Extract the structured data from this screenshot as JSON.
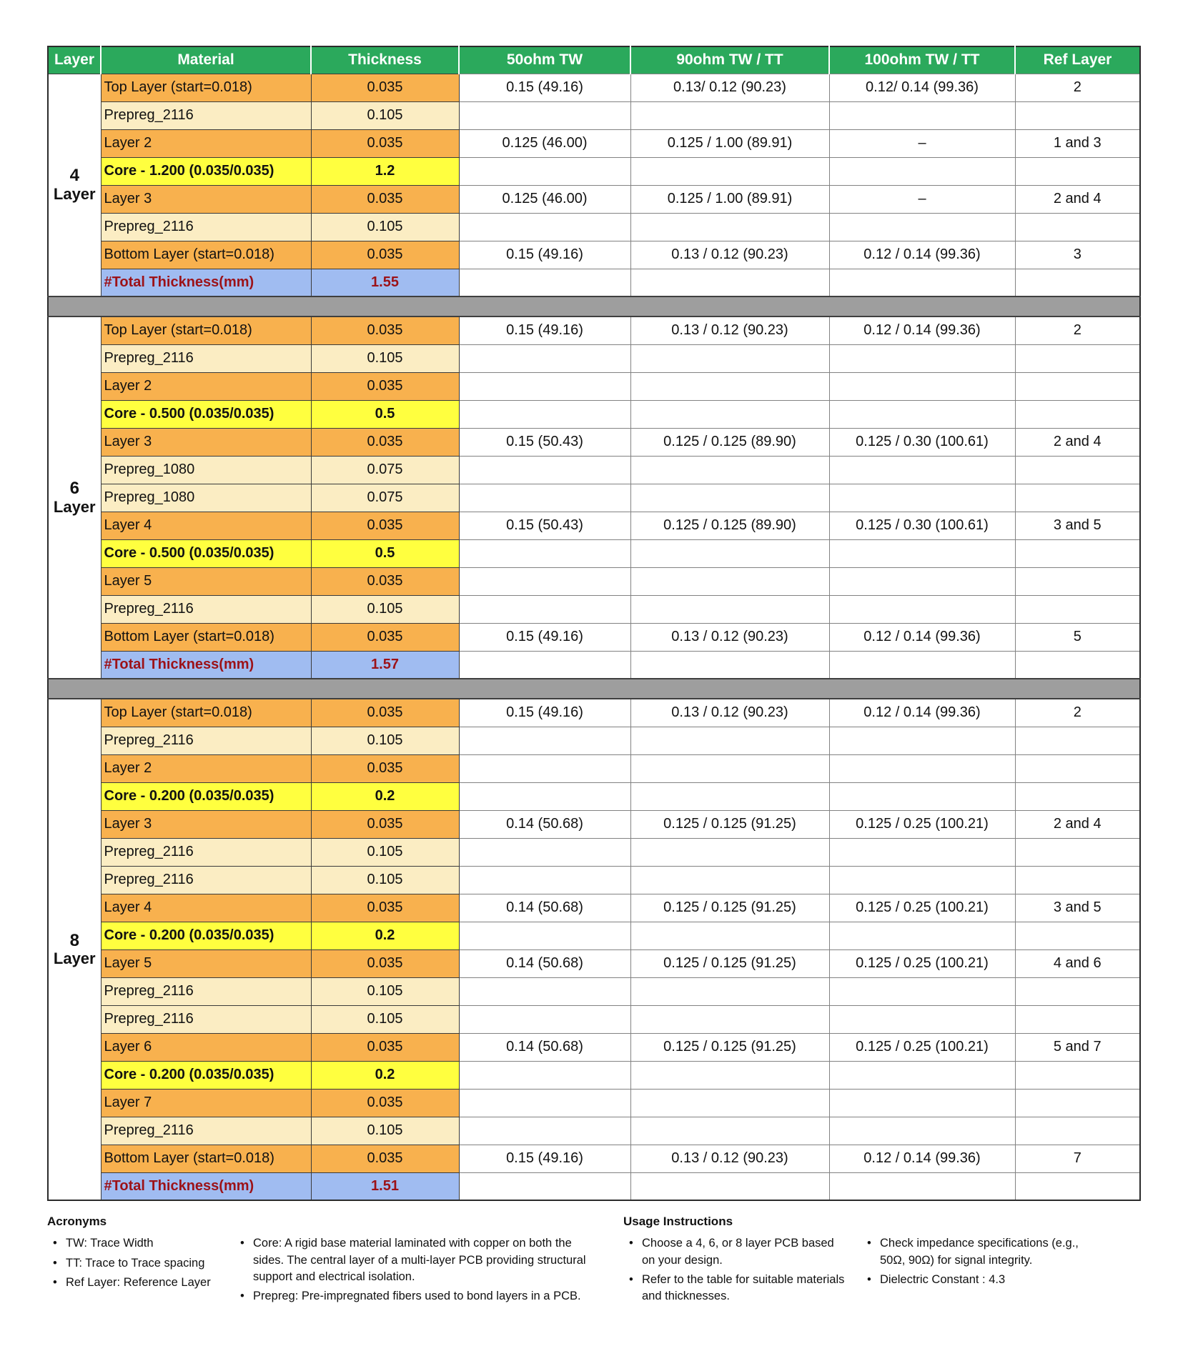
{
  "colors": {
    "header_green": "#2BA95C",
    "copper": "#F8B14E",
    "prepreg": "#FBEDC3",
    "core": "#FFFF3F",
    "total_bg": "#A0BCF1",
    "total_text": "#9C1218",
    "divider": "#9E9E9E"
  },
  "table": {
    "headers": [
      "Layer",
      "Material",
      "Thickness",
      "50ohm  TW",
      "90ohm  TW / TT",
      "100ohm  TW / TT",
      "Ref Layer"
    ],
    "sections": [
      {
        "label": {
          "number": "4",
          "word": "Layer"
        },
        "rows": [
          {
            "type": "copper",
            "material": "Top Layer (start=0.018)",
            "thickness": "0.035",
            "ohm50": "0.15 (49.16)",
            "ohm90": "0.13/ 0.12 (90.23)",
            "ohm100": "0.12/ 0.14 (99.36)",
            "ref": "2"
          },
          {
            "type": "prepreg",
            "material": "Prepreg_2116",
            "thickness": "0.105",
            "ohm50": "",
            "ohm90": "",
            "ohm100": "",
            "ref": ""
          },
          {
            "type": "copper",
            "material": "Layer 2",
            "thickness": "0.035",
            "ohm50": "0.125 (46.00)",
            "ohm90": "0.125 / 1.00 (89.91)",
            "ohm100": "–",
            "ref": "1 and 3"
          },
          {
            "type": "core",
            "material": "Core - 1.200 (0.035/0.035)",
            "thickness": "1.2",
            "ohm50": "",
            "ohm90": "",
            "ohm100": "",
            "ref": ""
          },
          {
            "type": "copper",
            "material": "Layer 3",
            "thickness": "0.035",
            "ohm50": "0.125 (46.00)",
            "ohm90": "0.125 / 1.00 (89.91)",
            "ohm100": "–",
            "ref": "2 and 4"
          },
          {
            "type": "prepreg",
            "material": "Prepreg_2116",
            "thickness": "0.105",
            "ohm50": "",
            "ohm90": "",
            "ohm100": "",
            "ref": ""
          },
          {
            "type": "copper",
            "material": "Bottom Layer (start=0.018)",
            "thickness": "0.035",
            "ohm50": "0.15 (49.16)",
            "ohm90": "0.13 / 0.12 (90.23)",
            "ohm100": "0.12 / 0.14 (99.36)",
            "ref": "3"
          },
          {
            "type": "total",
            "material": "#Total Thickness(mm)",
            "thickness": "1.55",
            "ohm50": "",
            "ohm90": "",
            "ohm100": "",
            "ref": ""
          }
        ]
      },
      {
        "label": {
          "number": "6",
          "word": "Layer"
        },
        "rows": [
          {
            "type": "copper",
            "material": "Top Layer (start=0.018)",
            "thickness": "0.035",
            "ohm50": "0.15 (49.16)",
            "ohm90": "0.13 / 0.12 (90.23)",
            "ohm100": "0.12 / 0.14 (99.36)",
            "ref": "2"
          },
          {
            "type": "prepreg",
            "material": "Prepreg_2116",
            "thickness": "0.105",
            "ohm50": "",
            "ohm90": "",
            "ohm100": "",
            "ref": ""
          },
          {
            "type": "copper",
            "material": "Layer 2",
            "thickness": "0.035",
            "ohm50": "",
            "ohm90": "",
            "ohm100": "",
            "ref": ""
          },
          {
            "type": "core",
            "material": "Core - 0.500 (0.035/0.035)",
            "thickness": "0.5",
            "ohm50": "",
            "ohm90": "",
            "ohm100": "",
            "ref": ""
          },
          {
            "type": "copper",
            "material": "Layer 3",
            "thickness": "0.035",
            "ohm50": "0.15 (50.43)",
            "ohm90": "0.125 / 0.125 (89.90)",
            "ohm100": "0.125 / 0.30 (100.61)",
            "ref": "2 and 4"
          },
          {
            "type": "prepreg",
            "material": "Prepreg_1080",
            "thickness": "0.075",
            "ohm50": "",
            "ohm90": "",
            "ohm100": "",
            "ref": ""
          },
          {
            "type": "prepreg",
            "material": "Prepreg_1080",
            "thickness": "0.075",
            "ohm50": "",
            "ohm90": "",
            "ohm100": "",
            "ref": ""
          },
          {
            "type": "copper",
            "material": "Layer 4",
            "thickness": "0.035",
            "ohm50": "0.15 (50.43)",
            "ohm90": "0.125 / 0.125 (89.90)",
            "ohm100": "0.125 / 0.30 (100.61)",
            "ref": "3 and 5"
          },
          {
            "type": "core",
            "material": "Core - 0.500 (0.035/0.035)",
            "thickness": "0.5",
            "ohm50": "",
            "ohm90": "",
            "ohm100": "",
            "ref": ""
          },
          {
            "type": "copper",
            "material": "Layer 5",
            "thickness": "0.035",
            "ohm50": "",
            "ohm90": "",
            "ohm100": "",
            "ref": ""
          },
          {
            "type": "prepreg",
            "material": "Prepreg_2116",
            "thickness": "0.105",
            "ohm50": "",
            "ohm90": "",
            "ohm100": "",
            "ref": ""
          },
          {
            "type": "copper",
            "material": "Bottom Layer (start=0.018)",
            "thickness": "0.035",
            "ohm50": "0.15 (49.16)",
            "ohm90": "0.13 / 0.12 (90.23)",
            "ohm100": "0.12 / 0.14 (99.36)",
            "ref": "5"
          },
          {
            "type": "total",
            "material": "#Total Thickness(mm)",
            "thickness": "1.57",
            "ohm50": "",
            "ohm90": "",
            "ohm100": "",
            "ref": ""
          }
        ]
      },
      {
        "label": {
          "number": "8",
          "word": "Layer"
        },
        "rows": [
          {
            "type": "copper",
            "material": "Top Layer (start=0.018)",
            "thickness": "0.035",
            "ohm50": "0.15 (49.16)",
            "ohm90": "0.13 / 0.12 (90.23)",
            "ohm100": "0.12 / 0.14 (99.36)",
            "ref": "2"
          },
          {
            "type": "prepreg",
            "material": "Prepreg_2116",
            "thickness": "0.105",
            "ohm50": "",
            "ohm90": "",
            "ohm100": "",
            "ref": ""
          },
          {
            "type": "copper",
            "material": "Layer 2",
            "thickness": "0.035",
            "ohm50": "",
            "ohm90": "",
            "ohm100": "",
            "ref": ""
          },
          {
            "type": "core",
            "material": "Core - 0.200 (0.035/0.035)",
            "thickness": "0.2",
            "ohm50": "",
            "ohm90": "",
            "ohm100": "",
            "ref": ""
          },
          {
            "type": "copper",
            "material": "Layer 3",
            "thickness": "0.035",
            "ohm50": "0.14 (50.68)",
            "ohm90": "0.125 / 0.125 (91.25)",
            "ohm100": "0.125 / 0.25 (100.21)",
            "ref": "2 and 4"
          },
          {
            "type": "prepreg",
            "material": "Prepreg_2116",
            "thickness": "0.105",
            "ohm50": "",
            "ohm90": "",
            "ohm100": "",
            "ref": ""
          },
          {
            "type": "prepreg",
            "material": "Prepreg_2116",
            "thickness": "0.105",
            "ohm50": "",
            "ohm90": "",
            "ohm100": "",
            "ref": ""
          },
          {
            "type": "copper",
            "material": "Layer 4",
            "thickness": "0.035",
            "ohm50": "0.14 (50.68)",
            "ohm90": "0.125 / 0.125 (91.25)",
            "ohm100": "0.125 / 0.25 (100.21)",
            "ref": "3 and 5"
          },
          {
            "type": "core",
            "material": "Core - 0.200 (0.035/0.035)",
            "thickness": "0.2",
            "ohm50": "",
            "ohm90": "",
            "ohm100": "",
            "ref": ""
          },
          {
            "type": "copper",
            "material": "Layer 5",
            "thickness": "0.035",
            "ohm50": "0.14 (50.68)",
            "ohm90": "0.125 / 0.125 (91.25)",
            "ohm100": "0.125 / 0.25 (100.21)",
            "ref": "4 and 6"
          },
          {
            "type": "prepreg",
            "material": "Prepreg_2116",
            "thickness": "0.105",
            "ohm50": "",
            "ohm90": "",
            "ohm100": "",
            "ref": ""
          },
          {
            "type": "prepreg",
            "material": "Prepreg_2116",
            "thickness": "0.105",
            "ohm50": "",
            "ohm90": "",
            "ohm100": "",
            "ref": ""
          },
          {
            "type": "copper",
            "material": "Layer 6",
            "thickness": "0.035",
            "ohm50": "0.14 (50.68)",
            "ohm90": "0.125 / 0.125 (91.25)",
            "ohm100": "0.125 / 0.25 (100.21)",
            "ref": "5 and 7"
          },
          {
            "type": "core",
            "material": "Core - 0.200 (0.035/0.035)",
            "thickness": "0.2",
            "ohm50": "",
            "ohm90": "",
            "ohm100": "",
            "ref": ""
          },
          {
            "type": "copper",
            "material": "Layer 7",
            "thickness": "0.035",
            "ohm50": "",
            "ohm90": "",
            "ohm100": "",
            "ref": ""
          },
          {
            "type": "prepreg",
            "material": "Prepreg_2116",
            "thickness": "0.105",
            "ohm50": "",
            "ohm90": "",
            "ohm100": "",
            "ref": ""
          },
          {
            "type": "copper",
            "material": "Bottom Layer (start=0.018)",
            "thickness": "0.035",
            "ohm50": "0.15 (49.16)",
            "ohm90": "0.13 / 0.12 (90.23)",
            "ohm100": "0.12 / 0.14 (99.36)",
            "ref": "7"
          },
          {
            "type": "total",
            "material": "#Total Thickness(mm)",
            "thickness": "1.51",
            "ohm50": "",
            "ohm90": "",
            "ohm100": "",
            "ref": ""
          }
        ]
      }
    ]
  },
  "footer": {
    "acronyms": {
      "title": "Acronyms",
      "col1": [
        "TW: Trace Width",
        "TT: Trace to Trace spacing",
        "Ref Layer: Reference Layer"
      ],
      "col2": [
        "Core: A rigid base material laminated with copper on both the sides. The central layer of a multi-layer PCB providing structural support and electrical isolation.",
        "Prepreg: Pre-impregnated fibers used to bond layers in a PCB."
      ]
    },
    "usage": {
      "title": "Usage Instructions",
      "col1": [
        "Choose a 4, 6, or 8 layer PCB based on your design.",
        "Refer to the table for suitable materials and thicknesses."
      ],
      "col2": [
        "Check impedance specifications (e.g., 50Ω, 90Ω) for signal integrity.",
        "Dielectric Constant : 4.3"
      ]
    }
  }
}
